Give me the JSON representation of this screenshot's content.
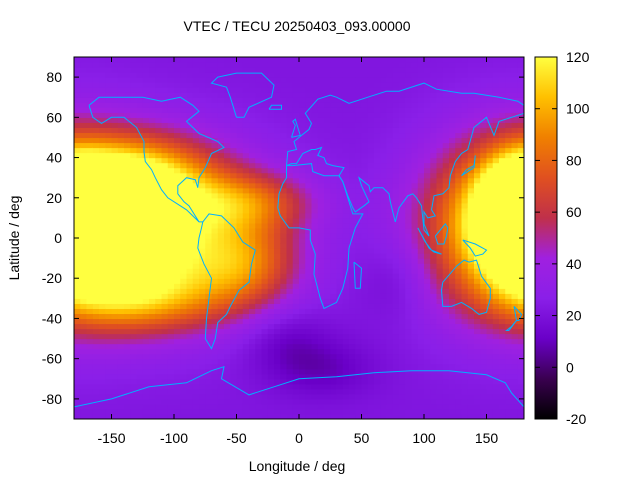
{
  "chart_data": {
    "type": "heatmap",
    "title": "VTEC / TECU 20250403_093.00000",
    "xlabel": "Longitude / deg",
    "ylabel": "Latitude / deg",
    "xlim": [
      -180,
      180
    ],
    "ylim": [
      -90,
      90
    ],
    "x_ticks": [
      -150,
      -100,
      -50,
      0,
      50,
      100,
      150
    ],
    "y_ticks": [
      -80,
      -60,
      -40,
      -20,
      0,
      20,
      40,
      60,
      80
    ],
    "colorbar": {
      "min": -20,
      "max": 120,
      "ticks": [
        -20,
        0,
        20,
        40,
        60,
        80,
        100,
        120
      ],
      "palette": [
        "#000000",
        "#3a0050",
        "#6a00c8",
        "#8a1fe8",
        "#a020e0",
        "#c0304a",
        "#e05020",
        "#f08000",
        "#ffc000",
        "#ffff40"
      ]
    },
    "background_value": 22,
    "features": [
      {
        "lon": -135,
        "lat": 2,
        "rx": 70,
        "ry": 28,
        "value": 100
      },
      {
        "lon": -150,
        "lat": 8,
        "rx": 38,
        "ry": 18,
        "value": 112
      },
      {
        "lon": -125,
        "lat": 30,
        "rx": 45,
        "ry": 15,
        "value": 70
      },
      {
        "lon": -125,
        "lat": -30,
        "rx": 50,
        "ry": 12,
        "value": 65
      },
      {
        "lon": -40,
        "lat": 18,
        "rx": 35,
        "ry": 10,
        "value": 62
      },
      {
        "lon": -45,
        "lat": -12,
        "rx": 30,
        "ry": 15,
        "value": 68
      },
      {
        "lon": 170,
        "lat": 8,
        "rx": 45,
        "ry": 30,
        "value": 85
      },
      {
        "lon": 178,
        "lat": 12,
        "rx": 20,
        "ry": 18,
        "value": 100
      },
      {
        "lon": 80,
        "lat": -20,
        "rx": 20,
        "ry": 15,
        "value": 12
      },
      {
        "lon": -10,
        "lat": -50,
        "rx": 25,
        "ry": 12,
        "value": 10
      },
      {
        "lon": 20,
        "lat": -65,
        "rx": 30,
        "ry": 10,
        "value": 10
      }
    ],
    "overlay": "coastlines",
    "overlay_color": "#00b0ff"
  }
}
